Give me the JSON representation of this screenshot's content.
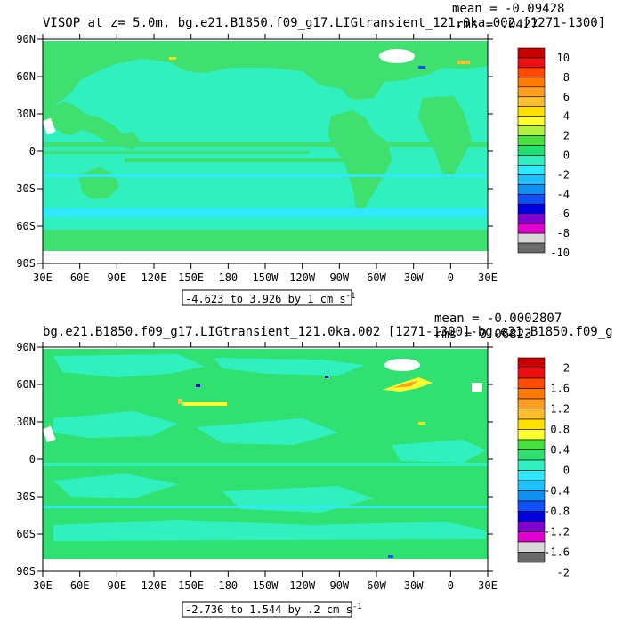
{
  "chart_data": [
    {
      "type": "heatmap",
      "title": "VISOP at z=   5.0m, bg.e21.B1850.f09_g17.LIGtransient_121.0ka.002 [1271-1300]",
      "mean_text": "mean = -0.09428",
      "rms_text": "rms = .0427",
      "range_note": "-4.623 to 3.926 by 1 cm s",
      "range_sup": "-1",
      "xticks": [
        "30E",
        "60E",
        "90E",
        "120E",
        "150E",
        "180",
        "150W",
        "120W",
        "90W",
        "60W",
        "30W",
        "0",
        "30E"
      ],
      "yticks": [
        "90N",
        "60N",
        "30N",
        "0",
        "30S",
        "60S",
        "90S"
      ],
      "colorbar": {
        "labels": [
          "10",
          "8",
          "6",
          "4",
          "2",
          "0",
          "-2",
          "-4",
          "-6",
          "-8",
          "-10"
        ],
        "colors": [
          "#c80000",
          "#ee1010",
          "#ff4a00",
          "#ff7a00",
          "#ff9e20",
          "#ffbe30",
          "#ffe000",
          "#ffff30",
          "#b0f040",
          "#48e040",
          "#20e070",
          "#30f0c0",
          "#30e8ff",
          "#20c0ff",
          "#1090f0",
          "#1050ff",
          "#0000e0",
          "#8000d0",
          "#e000d0",
          "#d8d8d8",
          "#6a6a6a"
        ]
      },
      "ylim": [
        -90,
        90
      ],
      "background": "#40e070",
      "regions": {
        "ocean": "#30f0c0",
        "land": "#40e070",
        "gap": "#ffffff"
      }
    },
    {
      "type": "heatmap",
      "title": "bg.e21.B1850.f09_g17.LIGtransient_121.0ka.002 [1271-1300]-bg.e21.B1850.f09_g",
      "mean_text": "mean = -0.0002807",
      "rms_text": "rms = 0.06823",
      "range_note": "-2.736 to 1.544 by .2 cm s",
      "range_sup": "-1",
      "xticks": [
        "30E",
        "60E",
        "90E",
        "120E",
        "150E",
        "180",
        "150W",
        "120W",
        "90W",
        "60W",
        "30W",
        "0",
        "30E"
      ],
      "yticks": [
        "90N",
        "60N",
        "30N",
        "0",
        "30S",
        "60S",
        "90S"
      ],
      "colorbar": {
        "labels": [
          "2",
          "1.6",
          "1.2",
          "0.8",
          "0.4",
          "0",
          "-0.4",
          "-0.8",
          "-1.2",
          "-1.6",
          "-2"
        ],
        "colors": [
          "#c80000",
          "#ee1010",
          "#ff4a00",
          "#ff7a00",
          "#ff9e20",
          "#ffbe30",
          "#ffe000",
          "#ffff30",
          "#48e040",
          "#30e070",
          "#30f0c0",
          "#30e8ff",
          "#20c0ff",
          "#1090f0",
          "#1050ff",
          "#0000e0",
          "#8000d0",
          "#e000d0",
          "#d8d8d8",
          "#6a6a6a"
        ]
      },
      "ylim": [
        -90,
        90
      ],
      "background": "#30e070",
      "regions": {
        "ocean": "#30f0c0",
        "land": "#30e070",
        "gap": "#ffffff"
      }
    }
  ]
}
